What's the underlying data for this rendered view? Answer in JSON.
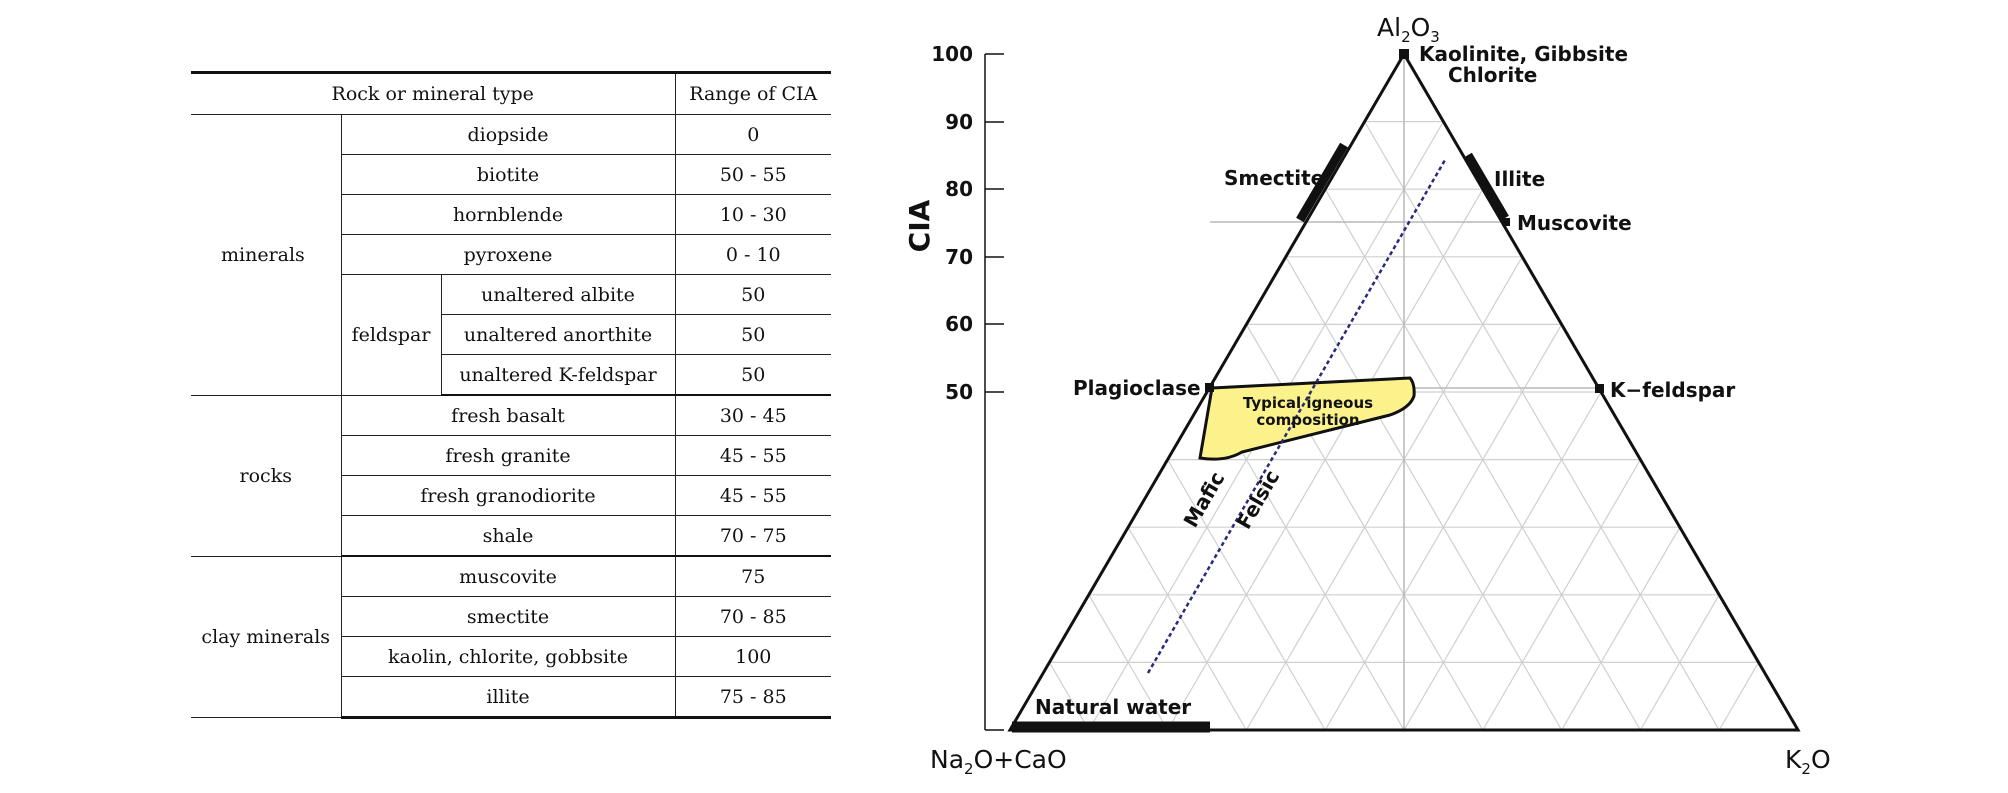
{
  "table": {
    "header": {
      "type": "Rock or mineral type",
      "range": "Range of CIA"
    },
    "groups": {
      "minerals": "minerals",
      "feldspar": "feldspar",
      "rocks": "rocks",
      "clay": "clay minerals"
    },
    "rows": [
      {
        "name": "diopside",
        "range": "0"
      },
      {
        "name": "biotite",
        "range": "50 - 55"
      },
      {
        "name": "hornblende",
        "range": "10 - 30"
      },
      {
        "name": "pyroxene",
        "range": "0 - 10"
      },
      {
        "name": "unaltered albite",
        "range": "50"
      },
      {
        "name": "unaltered anorthite",
        "range": "50"
      },
      {
        "name": "unaltered K-feldspar",
        "range": "50"
      },
      {
        "name": "fresh basalt",
        "range": "30 - 45"
      },
      {
        "name": "fresh granite",
        "range": "45 - 55"
      },
      {
        "name": "fresh granodiorite",
        "range": "45 - 55"
      },
      {
        "name": "shale",
        "range": "70 - 75"
      },
      {
        "name": "muscovite",
        "range": "75"
      },
      {
        "name": "smectite",
        "range": "70 - 85"
      },
      {
        "name": "kaolin, chlorite, gobbsite",
        "range": "100"
      },
      {
        "name": "illite",
        "range": "75 - 85"
      }
    ]
  },
  "diagram": {
    "y_axis_label": "CIA",
    "y_ticks": [
      "100",
      "90",
      "80",
      "70",
      "60",
      "50"
    ],
    "apex_top": {
      "main": "Al",
      "sub": "2",
      "rest": "O",
      "sub2": "3"
    },
    "apex_left": {
      "main": "Na",
      "sub": "2",
      "rest": "O+CaO"
    },
    "apex_right": {
      "main": "K",
      "sub": "2",
      "rest": "O"
    },
    "labels": {
      "kaolinite": "Kaolinite, Gibbsite",
      "chlorite": "Chlorite",
      "smectite": "Smectite",
      "illite": "Illite",
      "muscovite": "Muscovite",
      "plagioclase": "Plagioclase",
      "kfeldspar": "K−feldspar",
      "igneous_line1": "Typical igneous",
      "igneous_line2": "composition",
      "mafic": "Mafic",
      "felsic": "Felsic",
      "natural_water": "Natural water"
    },
    "colors": {
      "igneous_fill": "#fbf28c",
      "trend_line": "#2a2a7a",
      "grid": "#cfcfcf"
    }
  }
}
